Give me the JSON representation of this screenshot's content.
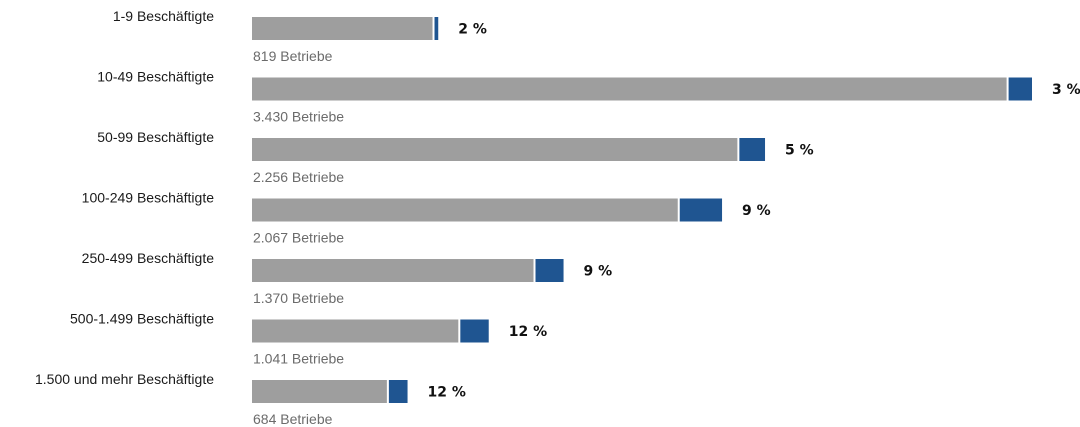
{
  "chart_data": {
    "type": "bar",
    "stacked": true,
    "orientation": "horizontal",
    "categories": [
      "1-9 Beschäftigte",
      "10-49 Beschäftigte",
      "50-99 Beschäftigte",
      "100-249 Beschäftigte",
      "250-499 Beschäftigte",
      "500-1.499 Beschäftigte",
      "1.500 und mehr Beschäftigte"
    ],
    "totals": [
      819,
      3430,
      2256,
      2067,
      1370,
      1041,
      684
    ],
    "count_labels": [
      "819 Betriebe",
      "3.430 Betriebe",
      "2.256 Betriebe",
      "2.067 Betriebe",
      "1.370 Betriebe",
      "1.041 Betriebe",
      "684 Betriebe"
    ],
    "percent_values": [
      2,
      3,
      5,
      9,
      9,
      12,
      12
    ],
    "percent_labels": [
      "2 %",
      "3 %",
      "5 %",
      "9 %",
      "9 %",
      "12 %",
      "12 %"
    ],
    "xlim": [
      0,
      3430
    ],
    "colors": {
      "remainder": "#9e9e9e",
      "share": "#1f5591"
    },
    "grid": false,
    "legend": "none"
  }
}
